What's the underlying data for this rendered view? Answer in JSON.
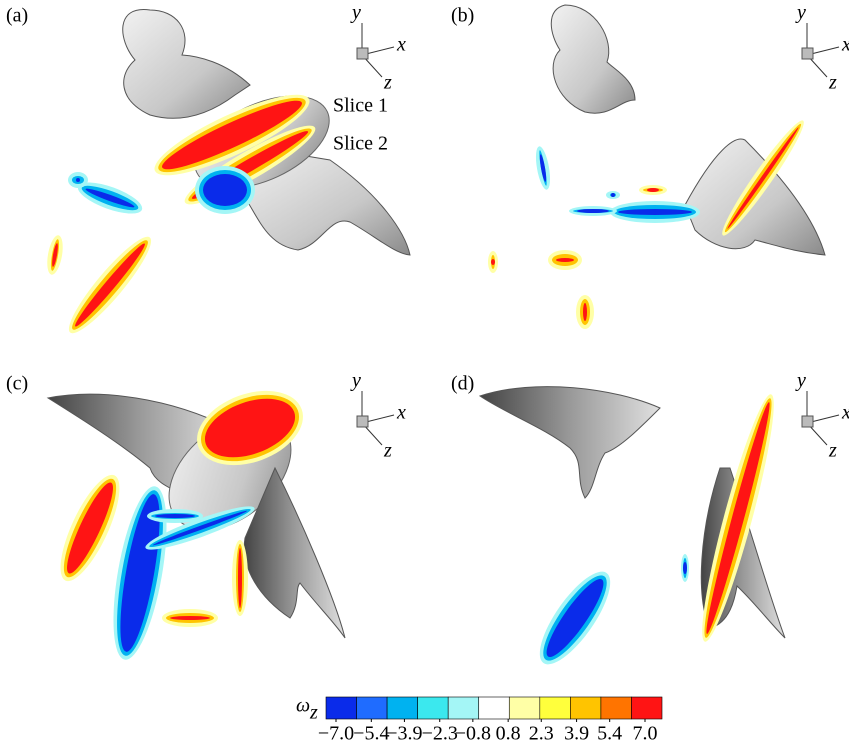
{
  "panels": [
    {
      "label": "(a)",
      "axes": {
        "y": "y",
        "x": "x",
        "z": "z"
      },
      "annotations": [
        "Slice 1",
        "Slice 2"
      ]
    },
    {
      "label": "(b)",
      "axes": {
        "y": "y",
        "x": "x",
        "z": "z"
      }
    },
    {
      "label": "(c)",
      "axes": {
        "y": "y",
        "x": "x",
        "z": "z"
      }
    },
    {
      "label": "(d)",
      "axes": {
        "y": "y",
        "x": "x",
        "z": "z"
      }
    }
  ],
  "colorbar": {
    "label": "ω",
    "subscript": "z",
    "colors": [
      "#0a2bea",
      "#1f6cff",
      "#00b2f0",
      "#3be8ee",
      "#a4f6f6",
      "#ffffff",
      "#ffffa6",
      "#ffff3c",
      "#ffc400",
      "#ff7400",
      "#ff1414"
    ],
    "levels": [
      {
        "value": -7.0,
        "label": "−7.0"
      },
      {
        "value": -5.4,
        "label": "−5.4"
      },
      {
        "value": -3.9,
        "label": "−3.9"
      },
      {
        "value": -2.3,
        "label": "−2.3"
      },
      {
        "value": -0.8,
        "label": "−0.8"
      },
      {
        "value": 0.8,
        "label": "0.8"
      },
      {
        "value": 2.3,
        "label": "2.3"
      },
      {
        "value": 3.9,
        "label": "3.9"
      },
      {
        "value": 5.4,
        "label": "5.4"
      },
      {
        "value": 7.0,
        "label": "7.0"
      }
    ]
  }
}
